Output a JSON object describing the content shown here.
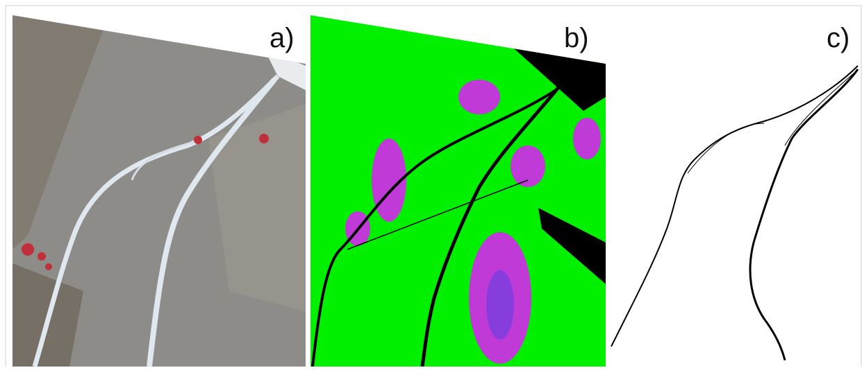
{
  "panels": [
    {
      "label": "a)"
    },
    {
      "label": "b)"
    },
    {
      "label": "c)"
    }
  ]
}
